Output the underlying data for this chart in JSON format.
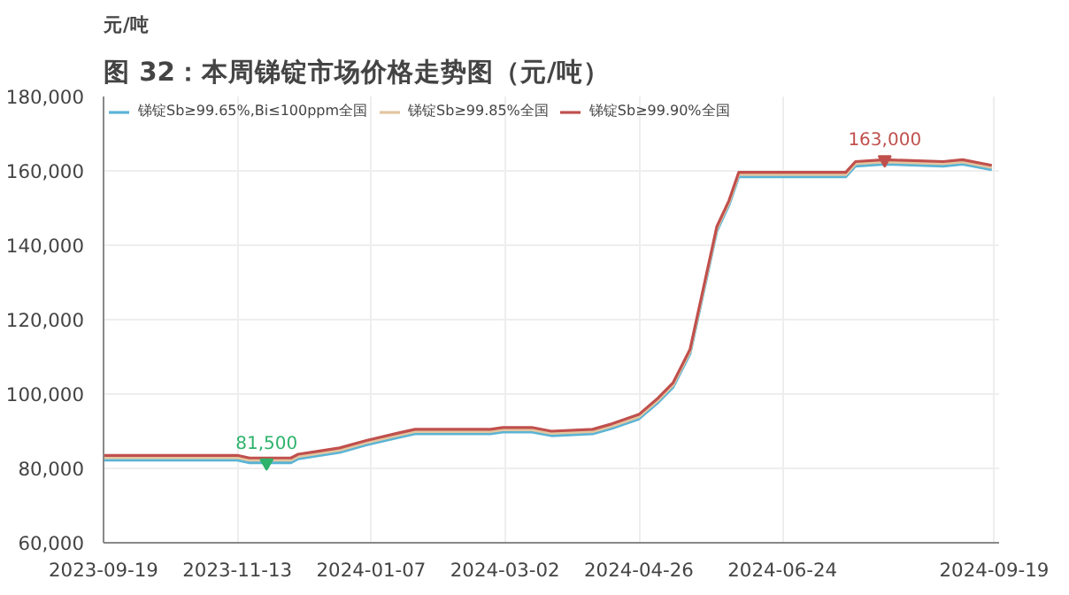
{
  "chart_data": {
    "type": "line",
    "title": "图 32：本周锑锭市场价格走势图（元/吨）",
    "ylabel": "元/吨",
    "xlim": [
      "2023-09-19",
      "2024-09-21"
    ],
    "xticks": [
      "2023-09-19",
      "2023-11-13",
      "2024-01-07",
      "2024-03-02",
      "2024-04-26",
      "2024-06-24",
      "2024-09-19"
    ],
    "ylim": [
      60000,
      180000
    ],
    "yticks": [
      {
        "value": 60000,
        "label": "60,000"
      },
      {
        "value": 80000,
        "label": "80,000"
      },
      {
        "value": 100000,
        "label": "100,000"
      },
      {
        "value": 120000,
        "label": "120,000"
      },
      {
        "value": 140000,
        "label": "140,000"
      },
      {
        "value": 160000,
        "label": "160,000"
      },
      {
        "value": 180000,
        "label": "180,000"
      }
    ],
    "grid": true,
    "legend": "top left",
    "line_style": "solid",
    "x": [
      "2023-09-19",
      "2023-11-13",
      "2023-11-18",
      "2023-12-05",
      "2023-12-08",
      "2023-12-15",
      "2023-12-25",
      "2024-01-05",
      "2024-01-18",
      "2024-01-25",
      "2024-02-25",
      "2024-03-01",
      "2024-03-13",
      "2024-03-21",
      "2024-04-07",
      "2024-04-15",
      "2024-04-26",
      "2024-05-04",
      "2024-05-10",
      "2024-05-17",
      "2024-05-23",
      "2024-05-28",
      "2024-06-02",
      "2024-06-06",
      "2024-07-20",
      "2024-07-24",
      "2024-08-05",
      "2024-08-29",
      "2024-09-06",
      "2024-09-18"
    ],
    "series": [
      {
        "name": "锑锭Sb≥99.65%,Bi≤100ppm全国",
        "color": "#5ab4d6",
        "values": [
          82200,
          82200,
          81500,
          81500,
          82600,
          83300,
          84300,
          86300,
          88300,
          89300,
          89300,
          89800,
          89800,
          88800,
          89300,
          90800,
          93300,
          97800,
          101800,
          110800,
          128800,
          143800,
          150800,
          158400,
          158400,
          161300,
          161800,
          161300,
          161800,
          160300
        ]
      },
      {
        "name": "锑锭Sb≥99.85%全国",
        "color": "#e3c6a0",
        "values": [
          82900,
          82900,
          82200,
          82200,
          83200,
          83900,
          84900,
          86900,
          88900,
          89900,
          89900,
          90400,
          90400,
          89400,
          89900,
          91400,
          93900,
          98400,
          102400,
          111400,
          129400,
          144400,
          151400,
          159000,
          159000,
          161900,
          162400,
          161900,
          162400,
          160900
        ]
      },
      {
        "name": "锑锭Sb≥99.90%全国",
        "color": "#c0504d",
        "values": [
          83500,
          83500,
          82800,
          82800,
          83800,
          84500,
          85500,
          87500,
          89500,
          90500,
          90500,
          91000,
          91000,
          90000,
          90500,
          92000,
          94500,
          99000,
          103000,
          112000,
          130000,
          145000,
          152000,
          159600,
          159600,
          162500,
          163000,
          162500,
          163000,
          161500
        ]
      }
    ],
    "annotations": [
      {
        "text": "81,500",
        "x": "2023-11-25",
        "y": 81500
      },
      {
        "text": "163,000",
        "x": "2024-08-05",
        "y": 163000
      }
    ]
  }
}
